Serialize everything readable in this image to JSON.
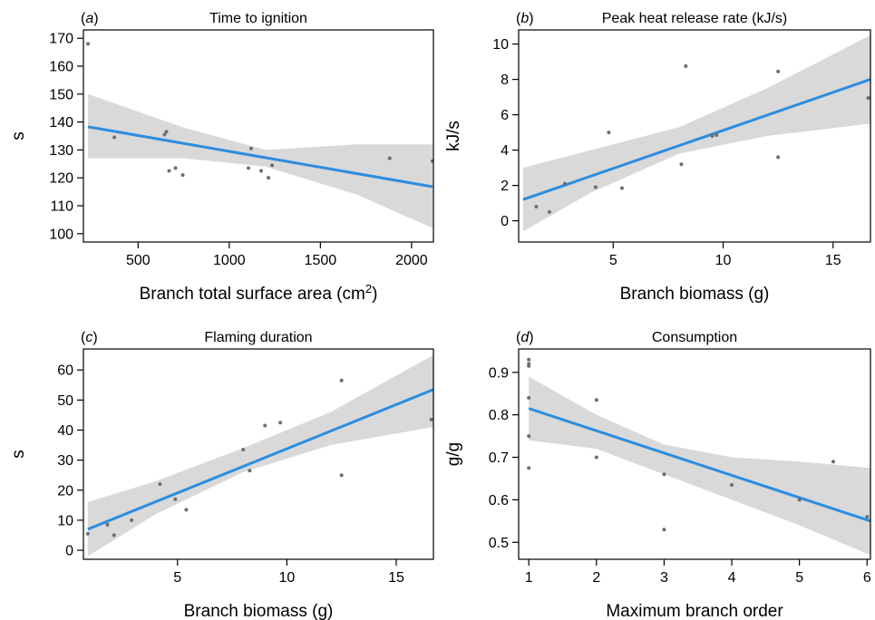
{
  "chart_data": [
    {
      "type": "scatter",
      "panel_letter": "a",
      "title": "Time to ignition",
      "xlabel": "Branch total surface area (cm",
      "xlabel_sup": "2",
      "xlabel_suffix": ")",
      "ylabel": "s",
      "xlim": [
        200,
        2120
      ],
      "ylim": [
        97,
        173
      ],
      "xticks": [
        500,
        1000,
        1500,
        2000
      ],
      "yticks": [
        100,
        110,
        120,
        130,
        140,
        150,
        160,
        170
      ],
      "points": [
        {
          "x": 225,
          "y": 168
        },
        {
          "x": 370,
          "y": 134.5
        },
        {
          "x": 645,
          "y": 135.5
        },
        {
          "x": 655,
          "y": 136.5
        },
        {
          "x": 670,
          "y": 122.5
        },
        {
          "x": 705,
          "y": 123.5
        },
        {
          "x": 745,
          "y": 121
        },
        {
          "x": 1105,
          "y": 123.5
        },
        {
          "x": 1120,
          "y": 130.5
        },
        {
          "x": 1175,
          "y": 122.5
        },
        {
          "x": 1215,
          "y": 120
        },
        {
          "x": 1235,
          "y": 124.5
        },
        {
          "x": 1880,
          "y": 127
        },
        {
          "x": 2115,
          "y": 126
        }
      ],
      "fit": {
        "x": [
          225,
          2115
        ],
        "y": [
          138.3,
          116.8
        ]
      },
      "band": {
        "x": [
          225,
          750,
          1200,
          1700,
          2115
        ],
        "lower": [
          127,
          127,
          124,
          114,
          102
        ],
        "upper": [
          150,
          138,
          130,
          132,
          132
        ]
      }
    },
    {
      "type": "scatter",
      "panel_letter": "b",
      "title": "Peak heat release rate (kJ/s)",
      "xlabel": "Branch biomass (g)",
      "ylabel": "kJ/s",
      "xlim": [
        0.7,
        16.7
      ],
      "ylim": [
        -1.2,
        10.8
      ],
      "xticks": [
        5,
        10,
        15
      ],
      "yticks": [
        0,
        2,
        4,
        6,
        8,
        10
      ],
      "points": [
        {
          "x": 1.5,
          "y": 0.8
        },
        {
          "x": 2.1,
          "y": 0.5
        },
        {
          "x": 2.8,
          "y": 2.1
        },
        {
          "x": 4.2,
          "y": 1.9
        },
        {
          "x": 4.8,
          "y": 5.0
        },
        {
          "x": 5.4,
          "y": 1.85
        },
        {
          "x": 8.1,
          "y": 3.2
        },
        {
          "x": 8.3,
          "y": 8.75
        },
        {
          "x": 9.5,
          "y": 4.8
        },
        {
          "x": 9.7,
          "y": 4.85
        },
        {
          "x": 12.5,
          "y": 8.45
        },
        {
          "x": 12.5,
          "y": 3.6
        },
        {
          "x": 16.6,
          "y": 6.95
        }
      ],
      "fit": {
        "x": [
          0.9,
          16.7
        ],
        "y": [
          1.2,
          8.0
        ]
      },
      "band": {
        "x": [
          0.9,
          4,
          8,
          12,
          16.7
        ],
        "lower": [
          -0.6,
          1.6,
          3.8,
          4.8,
          5.5
        ],
        "upper": [
          3.0,
          4.0,
          5.3,
          7.5,
          10.5
        ]
      }
    },
    {
      "type": "scatter",
      "panel_letter": "c",
      "title": "Flaming duration",
      "xlabel": "Branch biomass (g)",
      "ylabel": "s",
      "xlim": [
        0.7,
        16.7
      ],
      "ylim": [
        -3,
        67
      ],
      "xticks": [
        5,
        10,
        15
      ],
      "yticks": [
        0,
        10,
        20,
        30,
        40,
        50,
        60
      ],
      "points": [
        {
          "x": 0.9,
          "y": 5.5
        },
        {
          "x": 1.8,
          "y": 8.5
        },
        {
          "x": 2.1,
          "y": 5.0
        },
        {
          "x": 2.9,
          "y": 10.0
        },
        {
          "x": 4.2,
          "y": 22.0
        },
        {
          "x": 4.9,
          "y": 17.0
        },
        {
          "x": 5.4,
          "y": 13.5
        },
        {
          "x": 8.0,
          "y": 33.5
        },
        {
          "x": 8.3,
          "y": 26.5
        },
        {
          "x": 9.0,
          "y": 41.5
        },
        {
          "x": 9.7,
          "y": 42.5
        },
        {
          "x": 12.5,
          "y": 56.5
        },
        {
          "x": 12.5,
          "y": 25.0
        },
        {
          "x": 16.6,
          "y": 43.5
        }
      ],
      "fit": {
        "x": [
          0.9,
          16.7
        ],
        "y": [
          7.0,
          53.5
        ]
      },
      "band": {
        "x": [
          0.9,
          4,
          8,
          12,
          16.7
        ],
        "lower": [
          -2,
          12,
          26,
          35,
          41
        ],
        "upper": [
          16,
          23,
          34,
          46,
          65
        ]
      }
    },
    {
      "type": "scatter",
      "panel_letter": "d",
      "title": "Consumption",
      "xlabel": "Maximum branch order",
      "ylabel": "g/g",
      "xlim": [
        0.85,
        6.05
      ],
      "ylim": [
        0.46,
        0.955
      ],
      "xticks": [
        1,
        2,
        3,
        4,
        5,
        6
      ],
      "yticks": [
        0.5,
        0.6,
        0.7,
        0.8,
        0.9
      ],
      "points": [
        {
          "x": 1,
          "y": 0.93
        },
        {
          "x": 1,
          "y": 0.92
        },
        {
          "x": 1,
          "y": 0.915
        },
        {
          "x": 1,
          "y": 0.84
        },
        {
          "x": 1,
          "y": 0.75
        },
        {
          "x": 1,
          "y": 0.675
        },
        {
          "x": 2,
          "y": 0.835
        },
        {
          "x": 2,
          "y": 0.7
        },
        {
          "x": 3,
          "y": 0.66
        },
        {
          "x": 3,
          "y": 0.53
        },
        {
          "x": 4,
          "y": 0.635
        },
        {
          "x": 5,
          "y": 0.6
        },
        {
          "x": 5.5,
          "y": 0.69
        },
        {
          "x": 6,
          "y": 0.56
        }
      ],
      "fit": {
        "x": [
          1,
          6.05
        ],
        "y": [
          0.815,
          0.55
        ]
      },
      "band": {
        "x": [
          1,
          2,
          3,
          4,
          5,
          6.05
        ],
        "lower": [
          0.74,
          0.72,
          0.66,
          0.6,
          0.54,
          0.47
        ],
        "upper": [
          0.89,
          0.8,
          0.73,
          0.7,
          0.69,
          0.675
        ]
      }
    }
  ]
}
